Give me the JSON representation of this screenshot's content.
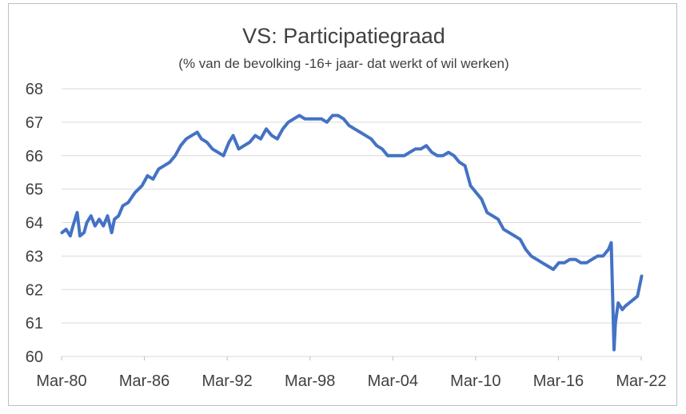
{
  "chart_data": {
    "type": "line",
    "title": "VS: Participatiegraad",
    "subtitle": "(% van de bevolking -16+ jaar- dat werkt of wil  werken)",
    "xlabel": "",
    "ylabel": "",
    "ylim": [
      60,
      68
    ],
    "y_ticks": [
      "60",
      "61",
      "62",
      "63",
      "64",
      "65",
      "66",
      "67",
      "68"
    ],
    "x_ticks": [
      "Mar-80",
      "Mar-86",
      "Mar-92",
      "Mar-98",
      "Mar-04",
      "Mar-10",
      "Mar-16",
      "Mar-22"
    ],
    "x_range": [
      1980.17,
      2022.17
    ],
    "grid": true,
    "legend": "none",
    "line_color": "#4472c4",
    "series": [
      {
        "x": [
          1980.2,
          1980.5,
          1980.8,
          1981.0,
          1981.3,
          1981.5,
          1981.8,
          1982.0,
          1982.3,
          1982.6,
          1982.9,
          1983.2,
          1983.5,
          1983.8,
          1984.0,
          1984.3,
          1984.6,
          1985.0,
          1985.5,
          1986.0,
          1986.4,
          1986.8,
          1987.2,
          1987.6,
          1988.0,
          1988.4,
          1988.8,
          1989.2,
          1989.6,
          1990.0,
          1990.3,
          1990.7,
          1991.1,
          1991.5,
          1991.9,
          1992.3,
          1992.6,
          1993.0,
          1993.4,
          1993.8,
          1994.2,
          1994.6,
          1995.0,
          1995.4,
          1995.8,
          1996.2,
          1996.6,
          1997.0,
          1997.4,
          1997.8,
          1998.2,
          1998.6,
          1999.0,
          1999.4,
          1999.8,
          2000.2,
          2000.6,
          2001.0,
          2001.4,
          2001.8,
          2002.2,
          2002.6,
          2003.0,
          2003.4,
          2003.8,
          2004.2,
          2004.6,
          2005.0,
          2005.4,
          2005.8,
          2006.2,
          2006.6,
          2007.0,
          2007.4,
          2007.8,
          2008.2,
          2008.6,
          2009.0,
          2009.4,
          2009.8,
          2010.2,
          2010.6,
          2011.0,
          2011.4,
          2011.8,
          2012.2,
          2012.6,
          2013.0,
          2013.4,
          2013.8,
          2014.2,
          2014.6,
          2015.0,
          2015.4,
          2015.8,
          2016.2,
          2016.6,
          2017.0,
          2017.4,
          2017.8,
          2018.2,
          2018.6,
          2019.0,
          2019.4,
          2019.8,
          2020.0,
          2020.2,
          2020.3,
          2020.5,
          2020.8,
          2021.0,
          2021.3,
          2021.6,
          2021.9,
          2022.2
        ],
        "y": [
          63.7,
          63.8,
          63.6,
          63.9,
          64.3,
          63.6,
          63.7,
          64.0,
          64.2,
          63.9,
          64.1,
          63.9,
          64.2,
          63.7,
          64.1,
          64.2,
          64.5,
          64.6,
          64.9,
          65.1,
          65.4,
          65.3,
          65.6,
          65.7,
          65.8,
          66.0,
          66.3,
          66.5,
          66.6,
          66.7,
          66.5,
          66.4,
          66.2,
          66.1,
          66.0,
          66.4,
          66.6,
          66.2,
          66.3,
          66.4,
          66.6,
          66.5,
          66.8,
          66.6,
          66.5,
          66.8,
          67.0,
          67.1,
          67.2,
          67.1,
          67.1,
          67.1,
          67.1,
          67.0,
          67.2,
          67.2,
          67.1,
          66.9,
          66.8,
          66.7,
          66.6,
          66.5,
          66.3,
          66.2,
          66.0,
          66.0,
          66.0,
          66.0,
          66.1,
          66.2,
          66.2,
          66.3,
          66.1,
          66.0,
          66.0,
          66.1,
          66.0,
          65.8,
          65.7,
          65.1,
          64.9,
          64.7,
          64.3,
          64.2,
          64.1,
          63.8,
          63.7,
          63.6,
          63.5,
          63.2,
          63.0,
          62.9,
          62.8,
          62.7,
          62.6,
          62.8,
          62.8,
          62.9,
          62.9,
          62.8,
          62.8,
          62.9,
          63.0,
          63.0,
          63.2,
          63.4,
          60.2,
          61.0,
          61.6,
          61.4,
          61.5,
          61.6,
          61.7,
          61.8,
          62.4
        ]
      }
    ]
  }
}
